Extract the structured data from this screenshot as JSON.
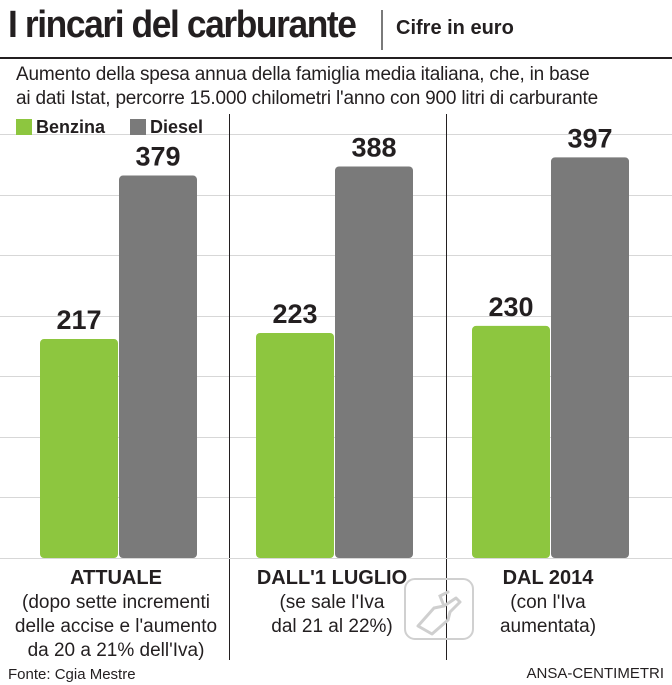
{
  "header": {
    "title": "I rincari del carburante",
    "subtitle": "Cifre in euro"
  },
  "description": {
    "line1": "Aumento della spesa annua della famiglia media italiana, che, in base",
    "line2": "ai dati Istat, percorre 15.000 chilometri l'anno con 900 litri di carburante"
  },
  "chart_data": {
    "type": "bar",
    "categories": [
      "ATTUALE",
      "DALL'1 LUGLIO",
      "DAL 2014"
    ],
    "category_notes": [
      "(dopo sette incrementi\ndelle accise e l'aumento\nda 20 a 21% dell'Iva)",
      "(se sale l'Iva\ndal 21 al 22%)",
      "(con l'Iva\naumentata)"
    ],
    "series": [
      {
        "name": "Benzina",
        "values": [
          217,
          223,
          230
        ],
        "color": "#8dc63f"
      },
      {
        "name": "Diesel",
        "values": [
          379,
          388,
          397
        ],
        "color": "#7a7a7a"
      }
    ],
    "ylim": [
      0,
      440
    ],
    "grid": true,
    "legend": "top-left",
    "data_labels": true
  },
  "footer": {
    "source": "Fonte: Cgia Mestre",
    "credit": "ANSA-CENTIMETRI"
  },
  "icons": {
    "decoration": "fuel-nozzle-icon"
  }
}
